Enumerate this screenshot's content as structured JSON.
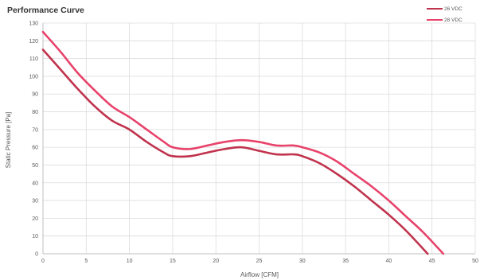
{
  "chart_data": {
    "type": "line",
    "title": "Performance Curve",
    "xlabel": "Airflow [CFM]",
    "ylabel": "Static Pressure [Pa]",
    "xlim": [
      0,
      50
    ],
    "ylim": [
      0,
      130
    ],
    "xticks": [
      0,
      5,
      10,
      15,
      20,
      25,
      30,
      35,
      40,
      45,
      50
    ],
    "yticks": [
      0,
      10,
      20,
      30,
      40,
      50,
      60,
      70,
      80,
      90,
      100,
      110,
      120,
      130
    ],
    "grid": true,
    "legend_position": "top-right",
    "series": [
      {
        "name": "26 VDC",
        "color": "#c0334d",
        "x": [
          0,
          2,
          4,
          6,
          8,
          10,
          12,
          14,
          15,
          17,
          19,
          21,
          23,
          25,
          27,
          29,
          30,
          32,
          34,
          36,
          38,
          40,
          42,
          44.5
        ],
        "y": [
          115,
          104,
          93,
          83,
          75,
          70,
          63,
          57,
          55,
          55,
          57,
          59,
          60,
          58,
          56,
          56,
          55,
          51,
          45,
          38,
          30,
          22,
          13,
          0
        ]
      },
      {
        "name": "28 VDC",
        "color": "#e8426a",
        "x": [
          0,
          2,
          4,
          6,
          8,
          10,
          12,
          14,
          15,
          17,
          19,
          21,
          23,
          25,
          27,
          29,
          30,
          32,
          34,
          36,
          38,
          40,
          42,
          44,
          46.3
        ],
        "y": [
          125,
          114,
          102,
          92,
          83,
          77,
          70,
          63,
          60,
          59,
          61,
          63,
          64,
          63,
          61,
          61,
          60,
          57,
          52,
          45,
          38,
          30,
          21,
          12,
          0
        ]
      }
    ]
  }
}
